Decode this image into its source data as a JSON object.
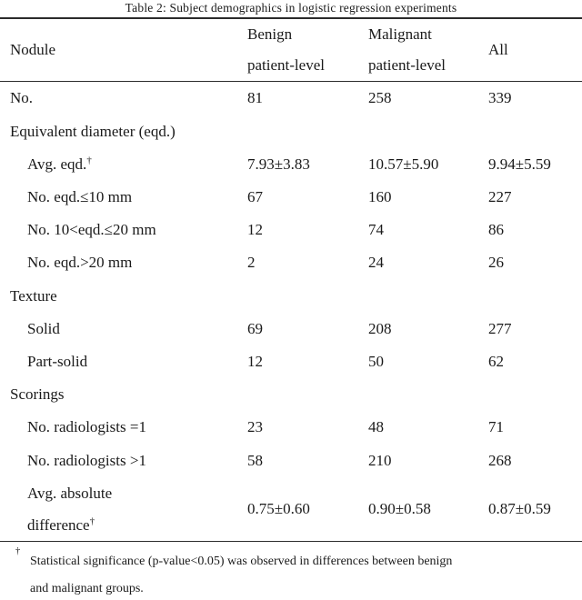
{
  "caption": "Table 2: Subject demographics in logistic regression experiments",
  "header": {
    "nodule": "Nodule",
    "benign_line1": "Benign",
    "benign_line2": "patient-level",
    "malignant_line1": "Malignant",
    "malignant_line2": "patient-level",
    "all": "All"
  },
  "rows": [
    {
      "label": "No.",
      "indent": 0,
      "benign": "81",
      "malignant": "258",
      "all": "339"
    },
    {
      "label": "Equivalent diameter (eqd.)",
      "indent": 0,
      "benign": "",
      "malignant": "",
      "all": ""
    },
    {
      "label": "Avg. eqd.",
      "sup": "†",
      "indent": 1,
      "benign": "7.93±3.83",
      "malignant": "10.57±5.90",
      "all": "9.94±5.59"
    },
    {
      "label": "No. eqd.≤10 mm",
      "indent": 1,
      "benign": "67",
      "malignant": "160",
      "all": "227"
    },
    {
      "label": "No. 10<eqd.≤20 mm",
      "indent": 1,
      "benign": "12",
      "malignant": "74",
      "all": "86"
    },
    {
      "label": "No. eqd.>20 mm",
      "indent": 1,
      "benign": "2",
      "malignant": "24",
      "all": "26"
    },
    {
      "label": "Texture",
      "indent": 0,
      "benign": "",
      "malignant": "",
      "all": ""
    },
    {
      "label": "Solid",
      "indent": 1,
      "benign": "69",
      "malignant": "208",
      "all": "277"
    },
    {
      "label": "Part-solid",
      "indent": 1,
      "benign": "12",
      "malignant": "50",
      "all": "62"
    },
    {
      "label": "Scorings",
      "indent": 0,
      "benign": "",
      "malignant": "",
      "all": ""
    },
    {
      "label": "No. radiologists =1",
      "indent": 1,
      "benign": "23",
      "malignant": "48",
      "all": "71"
    },
    {
      "label": "No. radiologists >1",
      "indent": 1,
      "benign": "58",
      "malignant": "210",
      "all": "268"
    },
    {
      "label": "Avg. absolute difference",
      "label_lines": [
        "Avg. absolute",
        "difference"
      ],
      "sup": "†",
      "indent": 1,
      "tall": true,
      "benign": "0.75±0.60",
      "malignant": "0.90±0.58",
      "all": "0.87±0.59"
    }
  ],
  "footnote": {
    "marker": "†",
    "line1": "Statistical significance (p-value<0.05) was observed in differences between benign",
    "line2": "and malignant groups."
  }
}
